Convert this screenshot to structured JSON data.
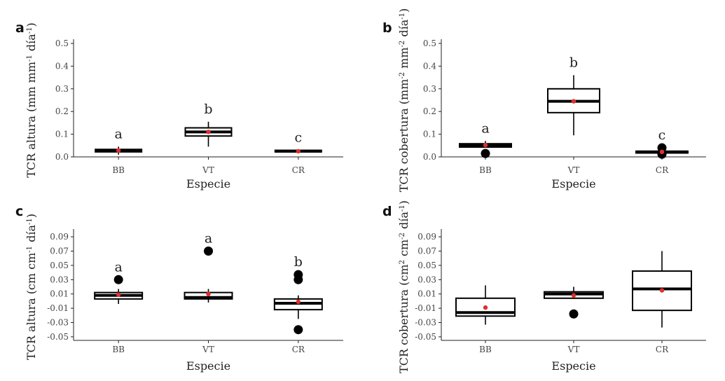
{
  "chart_data": [
    {
      "panel": "a",
      "type": "box",
      "xlabel": "Especie",
      "ylabel": "TCR altura (mm mm⁻¹ día⁻¹)",
      "ylim": [
        0,
        0.5
      ],
      "yticks": [
        "0.0",
        "0.1",
        "0.2",
        "0.3",
        "0.4",
        "0.5"
      ],
      "categories": [
        "BB",
        "VT",
        "CR"
      ],
      "groups": [
        {
          "category": "BB",
          "q1": 0.022,
          "median": 0.028,
          "q3": 0.033,
          "whisker_low": 0.01,
          "whisker_high": 0.045,
          "mean": 0.028,
          "outliers": [],
          "letter": "a"
        },
        {
          "category": "VT",
          "q1": 0.092,
          "median": 0.11,
          "q3": 0.128,
          "whisker_low": 0.045,
          "whisker_high": 0.155,
          "mean": 0.11,
          "outliers": [],
          "letter": "b"
        },
        {
          "category": "CR",
          "q1": 0.022,
          "median": 0.025,
          "q3": 0.029,
          "whisker_low": 0.022,
          "whisker_high": 0.029,
          "mean": 0.025,
          "outliers": [],
          "letter": "c"
        }
      ]
    },
    {
      "panel": "b",
      "type": "box",
      "xlabel": "Especie",
      "ylabel": "TCR cobertura (mm⁻² mm⁻² día⁻¹)",
      "ylim": [
        0,
        0.5
      ],
      "yticks": [
        "0.0",
        "0.1",
        "0.2",
        "0.3",
        "0.4",
        "0.5"
      ],
      "categories": [
        "BB",
        "VT",
        "CR"
      ],
      "groups": [
        {
          "category": "BB",
          "q1": 0.043,
          "median": 0.052,
          "q3": 0.058,
          "whisker_low": 0.043,
          "whisker_high": 0.07,
          "mean": 0.052,
          "outliers": [
            0.015
          ],
          "letter": "a"
        },
        {
          "category": "VT",
          "q1": 0.195,
          "median": 0.245,
          "q3": 0.3,
          "whisker_low": 0.095,
          "whisker_high": 0.36,
          "mean": 0.245,
          "outliers": [],
          "letter": "b"
        },
        {
          "category": "CR",
          "q1": 0.017,
          "median": 0.022,
          "q3": 0.025,
          "whisker_low": 0.017,
          "whisker_high": 0.025,
          "mean": 0.022,
          "outliers": [
            0.04,
            0.012
          ],
          "letter": "c"
        }
      ]
    },
    {
      "panel": "c",
      "type": "box",
      "xlabel": "Especie",
      "ylabel": "TCR altura (cm cm⁻¹ día⁻¹)",
      "ylim": [
        -0.055,
        0.095
      ],
      "yticks": [
        "-0.05",
        "-0.03",
        "-0.01",
        "0.01",
        "0.03",
        "0.05",
        "0.07",
        "0.09"
      ],
      "categories": [
        "BB",
        "VT",
        "CR"
      ],
      "groups": [
        {
          "category": "BB",
          "q1": 0.003,
          "median": 0.008,
          "q3": 0.012,
          "whisker_low": -0.004,
          "whisker_high": 0.017,
          "mean": 0.009,
          "outliers": [
            0.03
          ],
          "letter": "a"
        },
        {
          "category": "VT",
          "q1": 0.003,
          "median": 0.005,
          "q3": 0.012,
          "whisker_low": -0.002,
          "whisker_high": 0.017,
          "mean": 0.01,
          "outliers": [
            0.07
          ],
          "letter": "a"
        },
        {
          "category": "CR",
          "q1": -0.012,
          "median": -0.003,
          "q3": 0.003,
          "whisker_low": -0.025,
          "whisker_high": 0.008,
          "mean": -0.001,
          "outliers": [
            0.037,
            0.03,
            -0.04
          ],
          "letter": "b"
        }
      ]
    },
    {
      "panel": "d",
      "type": "box",
      "xlabel": "Especie",
      "ylabel": "TCR cobertura (cm² cm⁻² día⁻¹)",
      "ylim": [
        -0.055,
        0.095
      ],
      "yticks": [
        "-0.05",
        "-0.03",
        "-0.01",
        "0.01",
        "0.03",
        "0.05",
        "0.07",
        "0.09"
      ],
      "categories": [
        "BB",
        "VT",
        "CR"
      ],
      "groups": [
        {
          "category": "BB",
          "q1": -0.021,
          "median": -0.016,
          "q3": 0.004,
          "whisker_low": -0.033,
          "whisker_high": 0.022,
          "mean": -0.009,
          "outliers": [],
          "letter": ""
        },
        {
          "category": "VT",
          "q1": 0.004,
          "median": 0.01,
          "q3": 0.013,
          "whisker_low": 0.004,
          "whisker_high": 0.02,
          "mean": 0.008,
          "outliers": [
            -0.018
          ],
          "letter": ""
        },
        {
          "category": "CR",
          "q1": -0.013,
          "median": 0.017,
          "q3": 0.042,
          "whisker_low": -0.037,
          "whisker_high": 0.07,
          "mean": 0.015,
          "outliers": [],
          "letter": ""
        }
      ]
    }
  ]
}
